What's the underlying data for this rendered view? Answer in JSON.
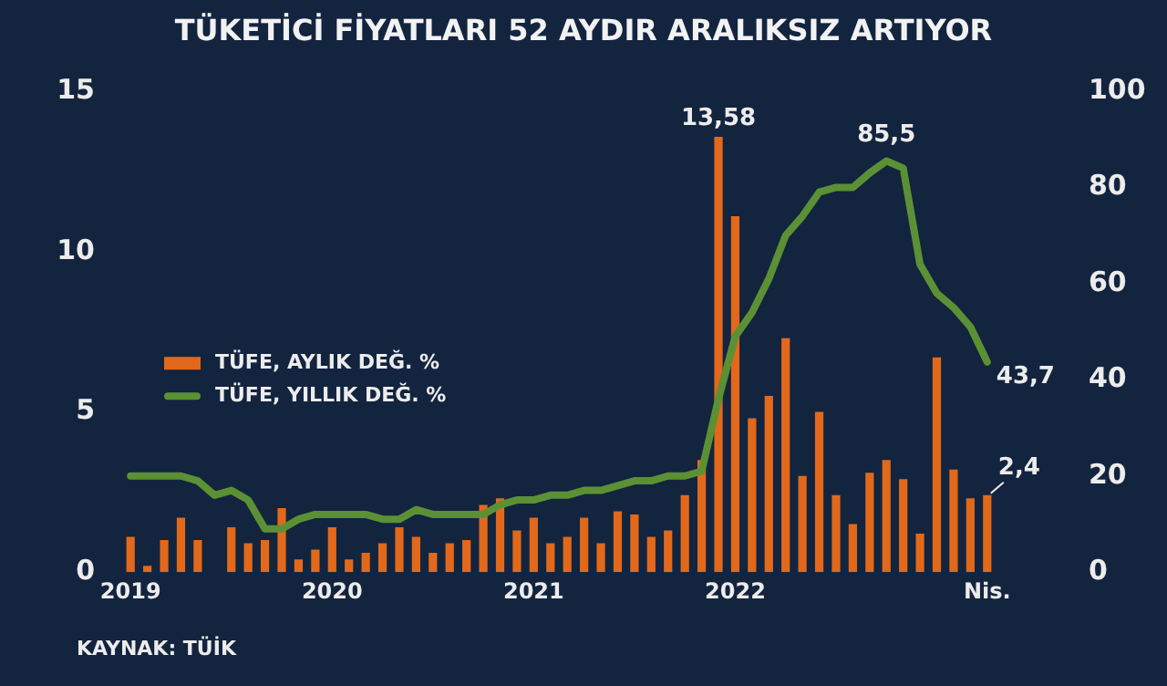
{
  "chart_data": {
    "type": "bar",
    "title": "TÜKETİCİ FİYATLARI 52 AYDIR ARALIKSIZ ARTIYOR",
    "categories": [
      "2019",
      null,
      null,
      null,
      null,
      null,
      null,
      null,
      null,
      null,
      null,
      null,
      "2020",
      null,
      null,
      null,
      null,
      null,
      null,
      null,
      null,
      null,
      null,
      null,
      "2021",
      null,
      null,
      null,
      null,
      null,
      null,
      null,
      null,
      null,
      null,
      null,
      "2022",
      null,
      null,
      null,
      null,
      null,
      null,
      null,
      null,
      null,
      null,
      null,
      null,
      null,
      null,
      "Nis."
    ],
    "series": [
      {
        "name": "TÜFE, AYLIK DEĞ. %",
        "color": "#e2691b",
        "values": [
          1.1,
          0.2,
          1.0,
          1.7,
          1.0,
          0,
          1.4,
          0.9,
          1.0,
          2.0,
          0.4,
          0.7,
          1.4,
          0.4,
          0.6,
          0.9,
          1.4,
          1.1,
          0.6,
          0.9,
          1.0,
          2.1,
          2.3,
          1.3,
          1.7,
          0.9,
          1.1,
          1.7,
          0.9,
          1.9,
          1.8,
          1.1,
          1.3,
          2.4,
          3.5,
          13.58,
          11.1,
          4.8,
          5.5,
          7.3,
          3.0,
          5.0,
          2.4,
          1.5,
          3.1,
          3.5,
          2.9,
          1.2,
          6.7,
          3.2,
          2.3,
          2.4
        ],
        "value_labels": [
          null,
          null,
          null,
          null,
          null,
          null,
          null,
          null,
          null,
          null,
          null,
          null,
          null,
          null,
          null,
          null,
          null,
          null,
          null,
          null,
          null,
          null,
          null,
          null,
          null,
          null,
          null,
          null,
          null,
          null,
          null,
          null,
          null,
          null,
          null,
          "13,58",
          null,
          null,
          null,
          null,
          null,
          null,
          null,
          null,
          null,
          null,
          null,
          null,
          null,
          null,
          null,
          "2,4"
        ]
      },
      {
        "name": "TÜFE, YILLIK DEĞ. %",
        "type": "line",
        "axis": "y2",
        "color": "#5b9134",
        "values": [
          20,
          20,
          20,
          20,
          19,
          16,
          17,
          15,
          9,
          9,
          11,
          12,
          12,
          12,
          12,
          11,
          11,
          13,
          12,
          12,
          12,
          12,
          14,
          15,
          15,
          16,
          16,
          17,
          17,
          18,
          19,
          19,
          20,
          20,
          21,
          36,
          49,
          54,
          61,
          70,
          74,
          79,
          80,
          80,
          83,
          85.5,
          84,
          64,
          58,
          55,
          51,
          43.7
        ],
        "value_labels": [
          null,
          null,
          null,
          null,
          null,
          null,
          null,
          null,
          null,
          null,
          null,
          null,
          null,
          null,
          null,
          null,
          null,
          null,
          null,
          null,
          null,
          null,
          null,
          null,
          null,
          null,
          null,
          null,
          null,
          null,
          null,
          null,
          null,
          null,
          null,
          null,
          null,
          null,
          null,
          null,
          null,
          null,
          null,
          null,
          null,
          "85,5",
          null,
          null,
          null,
          null,
          null,
          "43,7"
        ]
      }
    ],
    "ylim": [
      0,
      15
    ],
    "yticks": [
      0,
      5,
      10,
      15
    ],
    "y2lim": [
      0,
      100
    ],
    "y2ticks": [
      0,
      20,
      40,
      60,
      80,
      100
    ],
    "legend": "left",
    "marker": "none",
    "line_style": "solid",
    "annotations": [
      "KAYNAK: TÜİK"
    ]
  }
}
